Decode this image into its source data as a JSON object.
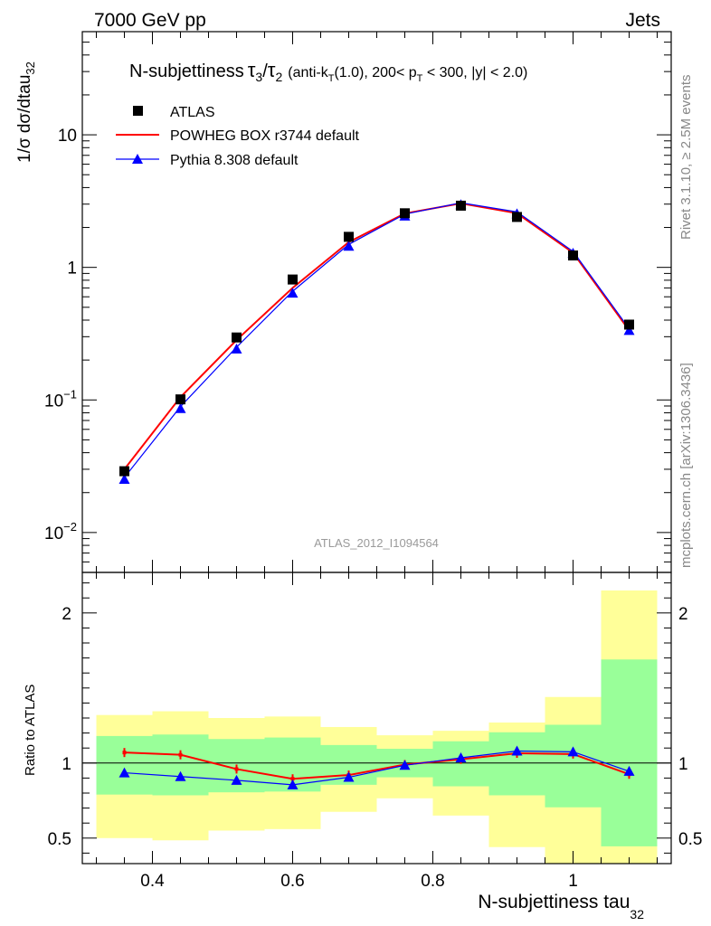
{
  "header": {
    "left": "7000 GeV pp",
    "right": "Jets"
  },
  "side_labels": {
    "rivet": "Rivet 3.1.10, ≥ 2.5M events",
    "mcplots": "mcplots.cern.ch [arXiv:1306.3436]"
  },
  "chart_data": [
    {
      "type": "line",
      "title": {
        "main": "N-subjettiness",
        "tau3": "τ",
        "sub3": "3",
        "slash": "/",
        "tau2": "τ",
        "sub2": "2",
        "cut_a": "(anti-k",
        "cut_T1": "T",
        "cut_b": "(1.0), 200< p",
        "cut_T2": "T",
        "cut_c": " < 300, |y| < 2.0)"
      },
      "ylabel": {
        "main": "1/σ dσ/dtau",
        "sub": "32"
      },
      "yscale": "log",
      "ylim": [
        0.005,
        60
      ],
      "xlim": [
        0.3,
        1.14
      ],
      "y_ticks": [
        {
          "value": 0.01,
          "base": "10",
          "exp": "−2"
        },
        {
          "value": 0.1,
          "base": "10",
          "exp": "−1"
        },
        {
          "value": 1,
          "base": "1",
          "exp": ""
        },
        {
          "value": 10,
          "base": "10",
          "exp": ""
        }
      ],
      "watermark": "ATLAS_2012_I1094564",
      "legend_position": "top-left",
      "x": [
        0.36,
        0.44,
        0.52,
        0.6,
        0.68,
        0.76,
        0.84,
        0.92,
        1.0,
        1.08
      ],
      "series": [
        {
          "name": "ATLAS",
          "style": "markers",
          "color": "#000000",
          "values": [
            0.029,
            0.101,
            0.296,
            0.81,
            1.7,
            2.56,
            2.92,
            2.4,
            1.23,
            0.37
          ]
        },
        {
          "name": "POWHEG BOX r3744 default",
          "style": "line",
          "color": "#ff0000",
          "values": [
            0.03,
            0.105,
            0.283,
            0.7,
            1.55,
            2.55,
            3.04,
            2.56,
            1.29,
            0.335
          ]
        },
        {
          "name": "Pythia 8.308 default",
          "style": "line-triangles",
          "color": "#0000ff",
          "values": [
            0.026,
            0.089,
            0.25,
            0.66,
            1.49,
            2.52,
            3.07,
            2.62,
            1.32,
            0.345
          ]
        }
      ]
    },
    {
      "type": "line",
      "ylabel": "Ratio to ATLAS",
      "xlabel": {
        "main": "N-subjettiness tau",
        "sub": "32"
      },
      "ylim": [
        0.33,
        2.27
      ],
      "xlim": [
        0.3,
        1.14
      ],
      "x_ticks": [
        {
          "value": 0.4,
          "label": "0.4"
        },
        {
          "value": 0.6,
          "label": "0.6"
        },
        {
          "value": 0.8,
          "label": "0.8"
        },
        {
          "value": 1.0,
          "label": "1"
        }
      ],
      "y_ticks": [
        {
          "value": 0.5,
          "label": "0.5"
        },
        {
          "value": 1,
          "label": "1"
        },
        {
          "value": 2,
          "label": "2"
        }
      ],
      "bins": [
        {
          "lo": 0.32,
          "hi": 0.4,
          "green": [
            0.79,
            1.18
          ],
          "yellow": [
            0.5,
            1.32
          ]
        },
        {
          "lo": 0.4,
          "hi": 0.48,
          "green": [
            0.785,
            1.19
          ],
          "yellow": [
            0.485,
            1.345
          ]
        },
        {
          "lo": 0.48,
          "hi": 0.56,
          "green": [
            0.805,
            1.16
          ],
          "yellow": [
            0.55,
            1.3
          ]
        },
        {
          "lo": 0.56,
          "hi": 0.64,
          "green": [
            0.81,
            1.17
          ],
          "yellow": [
            0.56,
            1.31
          ]
        },
        {
          "lo": 0.64,
          "hi": 0.72,
          "green": [
            0.855,
            1.12
          ],
          "yellow": [
            0.675,
            1.24
          ]
        },
        {
          "lo": 0.72,
          "hi": 0.8,
          "green": [
            0.905,
            1.095
          ],
          "yellow": [
            0.765,
            1.185
          ]
        },
        {
          "lo": 0.8,
          "hi": 0.88,
          "green": [
            0.845,
            1.145
          ],
          "yellow": [
            0.65,
            1.215
          ]
        },
        {
          "lo": 0.88,
          "hi": 0.96,
          "green": [
            0.785,
            1.205
          ],
          "yellow": [
            0.44,
            1.27
          ]
        },
        {
          "lo": 0.96,
          "hi": 1.04,
          "green": [
            0.705,
            1.255
          ],
          "yellow": [
            0.33,
            1.44
          ]
        },
        {
          "lo": 1.04,
          "hi": 1.12,
          "green": [
            0.445,
            1.69
          ],
          "yellow": [
            0.33,
            2.15
          ]
        }
      ],
      "x": [
        0.36,
        0.44,
        0.52,
        0.6,
        0.68,
        0.76,
        0.84,
        0.92,
        1.0,
        1.08
      ],
      "series": [
        {
          "name": "POWHEG BOX r3744 default",
          "color": "#ff0000",
          "values": [
            1.07,
            1.055,
            0.96,
            0.895,
            0.92,
            0.99,
            1.025,
            1.065,
            1.06,
            0.925
          ]
        },
        {
          "name": "Pythia 8.308 default",
          "color": "#0000ff",
          "values": [
            0.935,
            0.91,
            0.885,
            0.855,
            0.905,
            0.985,
            1.035,
            1.08,
            1.075,
            0.945
          ]
        }
      ]
    }
  ],
  "colors": {
    "green_band": "#99ff99",
    "yellow_band": "#ffff99",
    "atlas": "#000000",
    "powheg": "#ff0000",
    "pythia": "#0000ff"
  }
}
